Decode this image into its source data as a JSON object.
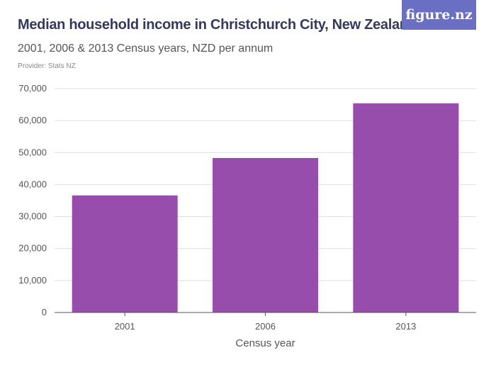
{
  "logo": {
    "text": "figure.nz"
  },
  "chart_data": {
    "type": "bar",
    "title": "Median household income in Christchurch City, New Zealand",
    "subtitle": "2001, 2006 & 2013 Census years, NZD per annum",
    "provider": "Provider: Stats NZ",
    "categories": [
      "2001",
      "2006",
      "2013"
    ],
    "values": [
      36600,
      48300,
      65400
    ],
    "xlabel": "Census year",
    "ylabel": "",
    "ylim": [
      0,
      70000
    ],
    "yticks": [
      0,
      10000,
      20000,
      30000,
      40000,
      50000,
      60000,
      70000
    ],
    "ytick_labels": [
      "0",
      "10,000",
      "20,000",
      "30,000",
      "40,000",
      "50,000",
      "60,000",
      "70,000"
    ],
    "grid": true,
    "bar_color": "#974dab",
    "grid_color": "#dddddd"
  }
}
